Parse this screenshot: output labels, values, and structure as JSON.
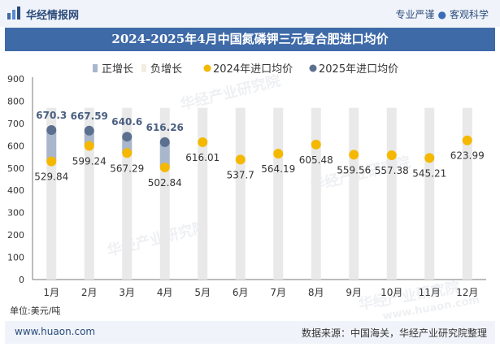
{
  "header": {
    "brand": "华经情报网",
    "tag_left": "专业严谨",
    "tag_right": "客观科学"
  },
  "watermark": "华经产业研究院",
  "watermark_url": "www.huaon.com",
  "unit_label": "单位:美元/吨",
  "footer": {
    "site": "www.huaon.com",
    "source": "数据来源：中国海关，华经产业研究院整理"
  },
  "colors": {
    "positive_bar": "#a9b7cc",
    "negative_bar": "#f2ede0",
    "series_2024": "#f5b800",
    "series_2025": "#5b6f8f",
    "background_bar": "#e9e9e9",
    "title_bg": "#3e6aa8"
  },
  "chart_data": {
    "type": "bar",
    "title": "2024-2025年4月中国氮磷钾三元复合肥进口均价",
    "categories": [
      "1月",
      "2月",
      "3月",
      "4月",
      "5月",
      "6月",
      "7月",
      "8月",
      "9月",
      "10月",
      "11月",
      "12月"
    ],
    "legend": [
      "正增长",
      "负增长",
      "2024年进口均价",
      "2025年进口均价"
    ],
    "legend_position": "top-center",
    "ylim": [
      0,
      900
    ],
    "yticks": [
      0,
      100,
      200,
      300,
      400,
      500,
      600,
      700,
      800,
      900
    ],
    "ylabel": "",
    "xlabel": "",
    "grid": false,
    "series": [
      {
        "name": "2024年进口均价",
        "type": "point",
        "values": [
          529.84,
          599.24,
          567.29,
          502.84,
          616.01,
          537.7,
          564.19,
          605.48,
          559.56,
          557.38,
          545.21,
          623.99
        ]
      },
      {
        "name": "2025年进口均价",
        "type": "point",
        "values": [
          670.3,
          667.59,
          640.6,
          616.26,
          null,
          null,
          null,
          null,
          null,
          null,
          null,
          null
        ]
      }
    ]
  }
}
